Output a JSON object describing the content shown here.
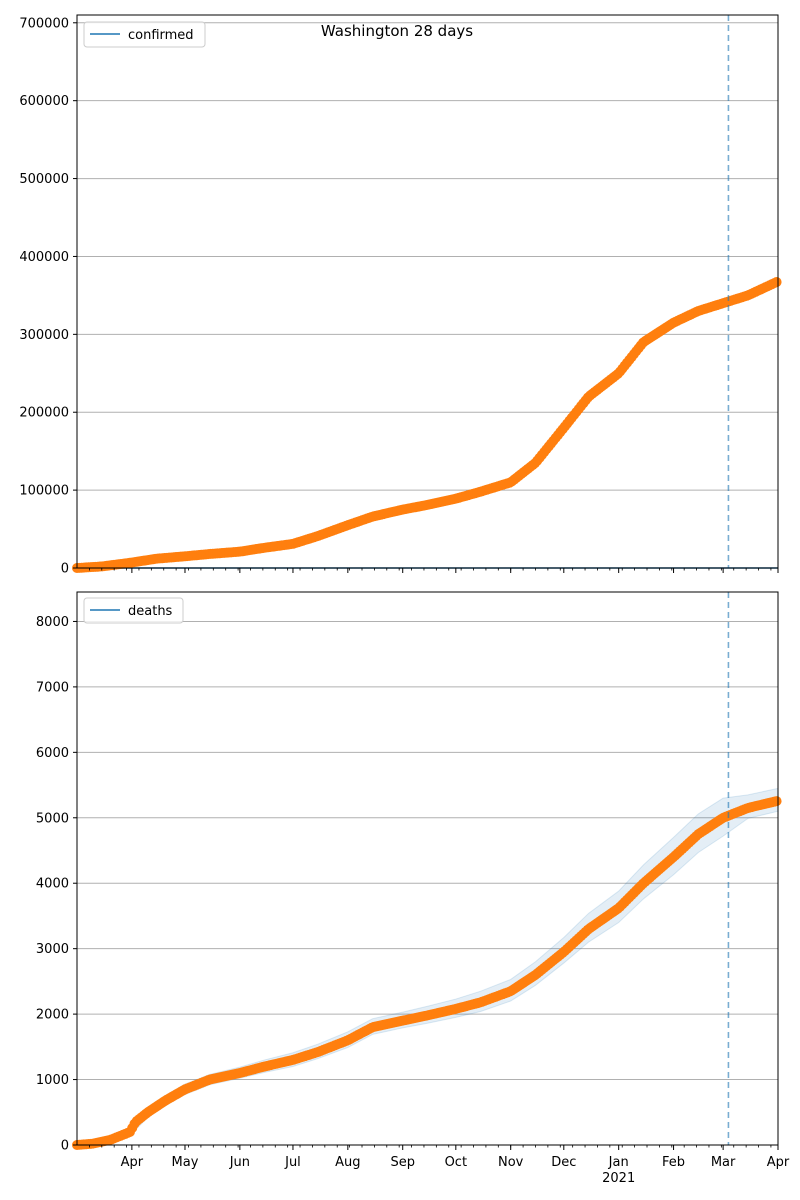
{
  "figure": {
    "suptitle": "Washington 28 days"
  },
  "colors": {
    "observed": "#ff7f0e",
    "model": "#1f77b4",
    "band": "#1f77b4",
    "grid": "#b0b0b0",
    "axis": "#000000"
  },
  "chart_data": [
    {
      "type": "line",
      "name": "confirmed",
      "legend": [
        "confirmed"
      ],
      "legend_position": "top-left",
      "x_range": [
        "2020-03-01",
        "2021-04-01"
      ],
      "ylim": [
        0,
        710000
      ],
      "yticks": [
        0,
        100000,
        200000,
        300000,
        400000,
        500000,
        600000,
        700000
      ],
      "ytick_labels": [
        "0",
        "100000",
        "200000",
        "300000",
        "400000",
        "500000",
        "600000",
        "700000"
      ],
      "grid": "horizontal",
      "forecast_start": "2021-03-04",
      "series": [
        {
          "name": "confirmed",
          "style": "model line",
          "x": [
            "2020-03-01",
            "2021-04-01"
          ],
          "values": [
            0,
            0
          ]
        },
        {
          "style": "observed markers",
          "x": [
            "2020-03-01",
            "2020-03-15",
            "2020-04-01",
            "2020-04-15",
            "2020-05-01",
            "2020-05-15",
            "2020-06-01",
            "2020-06-15",
            "2020-07-01",
            "2020-07-15",
            "2020-08-01",
            "2020-08-15",
            "2020-09-01",
            "2020-09-15",
            "2020-10-01",
            "2020-10-15",
            "2020-11-01",
            "2020-11-15",
            "2020-12-01",
            "2020-12-15",
            "2021-01-01",
            "2021-01-15",
            "2021-02-01",
            "2021-02-15",
            "2021-03-01",
            "2021-03-15",
            "2021-04-01"
          ],
          "values": [
            0,
            2000,
            7000,
            12000,
            15000,
            18000,
            21000,
            26000,
            31000,
            41000,
            55000,
            66000,
            75000,
            81000,
            89000,
            98000,
            110000,
            135000,
            180000,
            220000,
            250000,
            290000,
            315000,
            330000,
            340000,
            350000,
            368000
          ]
        }
      ]
    },
    {
      "type": "line",
      "name": "deaths",
      "legend": [
        "deaths"
      ],
      "legend_position": "top-left",
      "x_range": [
        "2020-03-01",
        "2021-04-01"
      ],
      "ylim": [
        0,
        8450
      ],
      "yticks": [
        0,
        1000,
        2000,
        3000,
        4000,
        5000,
        6000,
        7000,
        8000
      ],
      "ytick_labels": [
        "0",
        "1000",
        "2000",
        "3000",
        "4000",
        "5000",
        "6000",
        "7000",
        "8000"
      ],
      "grid": "horizontal",
      "forecast_start": "2021-03-04",
      "xtick_labels": [
        "Apr",
        "May",
        "Jun",
        "Jul",
        "Aug",
        "Sep",
        "Oct",
        "Nov",
        "Dec",
        "Jan",
        "Feb",
        "Mar",
        "Apr"
      ],
      "xtick_dates": [
        "2020-04-01",
        "2020-05-01",
        "2020-06-01",
        "2020-07-01",
        "2020-08-01",
        "2020-09-01",
        "2020-10-01",
        "2020-11-01",
        "2020-12-01",
        "2021-01-01",
        "2021-02-01",
        "2021-03-01",
        "2021-04-01"
      ],
      "year_label": "2021",
      "series": [
        {
          "style": "observed markers",
          "x": [
            "2020-03-01",
            "2020-03-10",
            "2020-03-20",
            "2020-03-31",
            "2020-04-03",
            "2020-04-10",
            "2020-04-20",
            "2020-05-01",
            "2020-05-15",
            "2020-06-01",
            "2020-06-15",
            "2020-07-01",
            "2020-07-15",
            "2020-08-01",
            "2020-08-15",
            "2020-09-01",
            "2020-09-15",
            "2020-10-01",
            "2020-10-15",
            "2020-11-01",
            "2020-11-15",
            "2020-12-01",
            "2020-12-15",
            "2021-01-01",
            "2021-01-15",
            "2021-02-01",
            "2021-02-15",
            "2021-03-01",
            "2021-03-15",
            "2021-04-01"
          ],
          "values": [
            0,
            20,
            80,
            200,
            350,
            500,
            680,
            850,
            1000,
            1100,
            1200,
            1300,
            1420,
            1600,
            1800,
            1900,
            1980,
            2080,
            2180,
            2350,
            2600,
            2950,
            3300,
            3620,
            4000,
            4400,
            4750,
            5000,
            5150,
            5260
          ]
        },
        {
          "name": "deaths",
          "style": "model line with band",
          "x": [
            "2020-03-31",
            "2020-04-10",
            "2020-04-20",
            "2020-05-01",
            "2020-05-15",
            "2020-06-01",
            "2020-06-15",
            "2020-07-01",
            "2020-07-15",
            "2020-08-01",
            "2020-08-15",
            "2020-09-01",
            "2020-09-15",
            "2020-10-01",
            "2020-10-15",
            "2020-11-01",
            "2020-11-15",
            "2020-12-01",
            "2020-12-15",
            "2021-01-01",
            "2021-01-15",
            "2021-02-01",
            "2021-02-15",
            "2021-03-01",
            "2021-03-15",
            "2021-04-01"
          ],
          "values": [
            200,
            500,
            680,
            850,
            1000,
            1100,
            1200,
            1300,
            1420,
            1600,
            1800,
            1900,
            1980,
            2080,
            2180,
            2350,
            2600,
            2950,
            3300,
            3620,
            4000,
            4400,
            4750,
            5000,
            5150,
            5260
          ],
          "band_lower": [
            150,
            420,
            600,
            770,
            920,
            1020,
            1110,
            1200,
            1320,
            1490,
            1690,
            1790,
            1860,
            1950,
            2040,
            2200,
            2440,
            2780,
            3100,
            3400,
            3760,
            4130,
            4470,
            4720,
            4990,
            5100
          ],
          "band_upper": [
            250,
            580,
            760,
            930,
            1080,
            1190,
            1300,
            1410,
            1540,
            1730,
            1930,
            2030,
            2120,
            2230,
            2350,
            2530,
            2800,
            3170,
            3540,
            3880,
            4280,
            4700,
            5060,
            5300,
            5350,
            5450
          ]
        }
      ]
    }
  ]
}
